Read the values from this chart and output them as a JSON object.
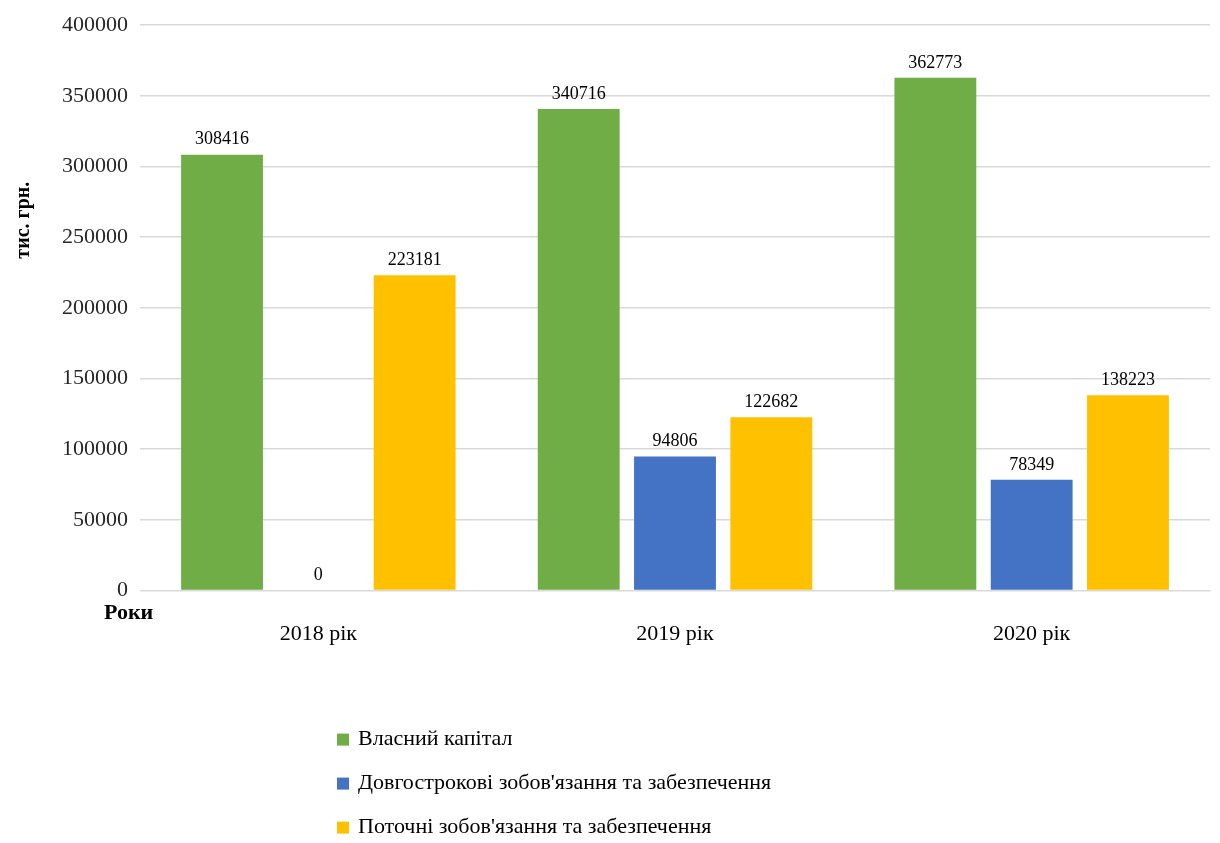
{
  "chart_data": {
    "type": "bar",
    "categories": [
      "2018 рік",
      "2019 рік",
      "2020 рік"
    ],
    "series": [
      {
        "name": "Власний капітал",
        "color": "#70ad47",
        "values": [
          308416,
          340716,
          362773
        ]
      },
      {
        "name": "Довгострокові зобов'язання та забезпечення",
        "color": "#4472c4",
        "values": [
          0,
          94806,
          78349
        ]
      },
      {
        "name": "Поточні зобов'язання та забезпечення",
        "color": "#ffc000",
        "values": [
          223181,
          122682,
          138223
        ]
      }
    ],
    "ylim": [
      0,
      400000
    ],
    "yticks": [
      0,
      50000,
      100000,
      150000,
      200000,
      250000,
      300000,
      350000,
      400000
    ],
    "xlabel": "Роки",
    "ylabel": "тис. грн.",
    "grid": "y",
    "legend": "bottom",
    "data_labels": true
  }
}
